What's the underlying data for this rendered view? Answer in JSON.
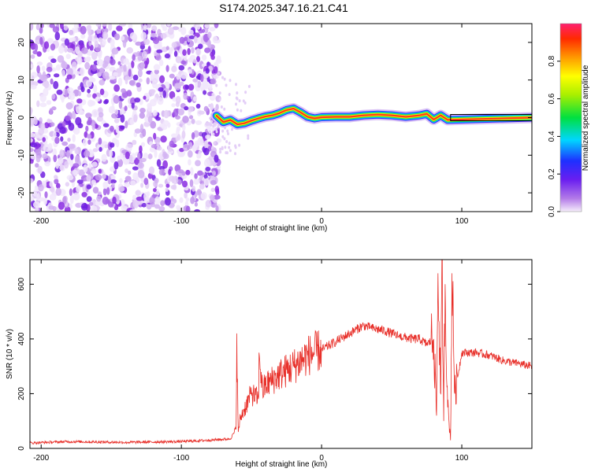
{
  "title": "S174.2025.347.16.21.C41",
  "colors": {
    "signal": "#e8302a",
    "trace": "#e8302a",
    "speckle": "#8a2be2",
    "frame": "#000000"
  },
  "chart_data": [
    {
      "type": "heatmap",
      "xlabel": "Height of straight line (km)",
      "ylabel": "Frequency (Hz)",
      "xlim": [
        -208,
        150
      ],
      "ylim": [
        -25,
        25
      ],
      "xticks": [
        -200,
        -100,
        0,
        100
      ],
      "yticks": [
        -20,
        -10,
        0,
        10,
        20
      ],
      "noise_region_km": [
        -208,
        -73
      ],
      "ridge": {
        "x": [
          -75,
          -70,
          -65,
          -60,
          -55,
          -50,
          -45,
          -40,
          -35,
          -30,
          -25,
          -20,
          -15,
          -10,
          -5,
          0,
          10,
          20,
          30,
          40,
          50,
          60,
          70,
          75,
          80,
          85,
          90,
          150
        ],
        "freq_hz": [
          0.5,
          -1.2,
          -0.6,
          -1.8,
          -1.5,
          -0.8,
          -0.2,
          0.3,
          0.6,
          1.2,
          2.0,
          2.4,
          1.4,
          0.2,
          -0.2,
          0.1,
          0.2,
          0.2,
          0.6,
          0.8,
          0.6,
          0.2,
          0.6,
          1.0,
          -0.5,
          0.6,
          -0.6,
          0
        ]
      },
      "colorbar": {
        "label": "Normalized spectral amplitude",
        "range": [
          0,
          1
        ],
        "ticks": [
          "0.0",
          "0.2",
          "0.4",
          "0.6",
          "0.8"
        ]
      }
    },
    {
      "type": "line",
      "xlabel": "Height of straight line (km)",
      "ylabel": "SNR (10 * v/v)",
      "xlim": [
        -208,
        150
      ],
      "ylim": [
        0,
        690
      ],
      "xticks": [
        -200,
        -100,
        0,
        100
      ],
      "yticks": [
        0,
        200,
        400,
        600
      ],
      "series": [
        {
          "name": "SNR",
          "x": [
            -208,
            -180,
            -140,
            -100,
            -80,
            -65,
            -61,
            -60.5,
            -59.5,
            -58,
            -50,
            -45,
            -44.5,
            -42,
            -40,
            -30,
            -20,
            -10,
            0,
            10,
            20,
            30,
            35,
            45,
            55,
            65,
            70,
            75,
            80,
            82,
            83,
            85,
            86,
            87,
            88,
            90,
            92,
            93,
            95,
            100,
            110,
            120,
            130,
            140,
            150
          ],
          "y": [
            20,
            25,
            22,
            25,
            30,
            35,
            70,
            420,
            60,
            110,
            200,
            180,
            350,
            210,
            230,
            270,
            300,
            340,
            360,
            390,
            420,
            450,
            440,
            430,
            410,
            400,
            400,
            380,
            400,
            120,
            640,
            200,
            690,
            100,
            600,
            150,
            30,
            640,
            200,
            350,
            350,
            340,
            320,
            310,
            300
          ]
        }
      ]
    }
  ]
}
